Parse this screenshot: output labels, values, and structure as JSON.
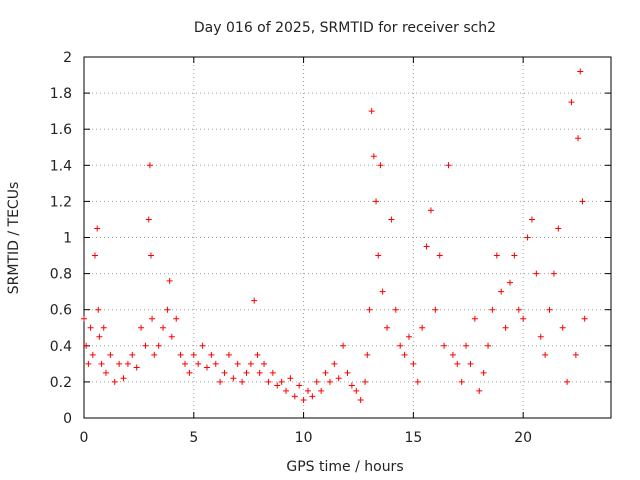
{
  "chart_data": {
    "type": "scatter",
    "title": "Day 016 of 2025, SRMTID for receiver sch2",
    "xlabel": "GPS time / hours",
    "ylabel": "SRMTID / TECUs",
    "xlim": [
      0,
      24
    ],
    "ylim": [
      0,
      2
    ],
    "xticks": [
      0,
      5,
      10,
      15,
      20
    ],
    "xtick_labels": [
      "0",
      "5",
      "10",
      "15",
      "20"
    ],
    "yticks": [
      0,
      0.2,
      0.4,
      0.6,
      0.8,
      1,
      1.2,
      1.4,
      1.6,
      1.8,
      2
    ],
    "ytick_labels": [
      "0",
      "0.2",
      "0.4",
      "0.6",
      "0.8",
      "1",
      "1.2",
      "1.4",
      "1.6",
      "1.8",
      "2"
    ],
    "grid": true,
    "marker": "+",
    "color": "#ff0000",
    "series": [
      {
        "name": "SRMTID",
        "x": [
          0.0,
          0.1,
          0.2,
          0.3,
          0.4,
          0.5,
          0.6,
          0.65,
          0.7,
          0.8,
          0.9,
          1.0,
          1.2,
          1.4,
          1.6,
          1.8,
          2.0,
          2.2,
          2.4,
          2.6,
          2.8,
          2.95,
          3.0,
          3.05,
          3.1,
          3.2,
          3.4,
          3.6,
          3.8,
          3.9,
          4.0,
          4.2,
          4.4,
          4.6,
          4.8,
          5.0,
          5.2,
          5.4,
          5.6,
          5.8,
          6.0,
          6.2,
          6.4,
          6.6,
          6.8,
          7.0,
          7.2,
          7.4,
          7.6,
          7.75,
          7.9,
          8.0,
          8.2,
          8.4,
          8.6,
          8.8,
          9.0,
          9.2,
          9.4,
          9.6,
          9.8,
          10.0,
          10.2,
          10.4,
          10.6,
          10.8,
          11.0,
          11.2,
          11.4,
          11.6,
          11.8,
          12.0,
          12.2,
          12.4,
          12.6,
          12.8,
          12.9,
          13.0,
          13.1,
          13.2,
          13.3,
          13.4,
          13.5,
          13.6,
          13.8,
          14.0,
          14.2,
          14.4,
          14.6,
          14.8,
          15.0,
          15.2,
          15.4,
          15.6,
          15.8,
          16.0,
          16.2,
          16.4,
          16.6,
          16.8,
          17.0,
          17.2,
          17.4,
          17.6,
          17.8,
          18.0,
          18.2,
          18.4,
          18.6,
          18.8,
          19.0,
          19.2,
          19.4,
          19.6,
          19.8,
          20.0,
          20.2,
          20.4,
          20.6,
          20.8,
          21.0,
          21.2,
          21.4,
          21.6,
          21.8,
          22.0,
          22.2,
          22.4,
          22.5,
          22.6,
          22.7,
          22.8
        ],
        "y": [
          0.55,
          0.4,
          0.3,
          0.5,
          0.35,
          0.9,
          1.05,
          0.6,
          0.45,
          0.3,
          0.5,
          0.25,
          0.35,
          0.2,
          0.3,
          0.22,
          0.3,
          0.35,
          0.28,
          0.5,
          0.4,
          1.1,
          1.4,
          0.9,
          0.55,
          0.35,
          0.4,
          0.5,
          0.6,
          0.76,
          0.45,
          0.55,
          0.35,
          0.3,
          0.25,
          0.35,
          0.3,
          0.4,
          0.28,
          0.35,
          0.3,
          0.2,
          0.25,
          0.35,
          0.22,
          0.3,
          0.2,
          0.25,
          0.3,
          0.65,
          0.35,
          0.25,
          0.3,
          0.2,
          0.25,
          0.18,
          0.2,
          0.15,
          0.22,
          0.12,
          0.18,
          0.1,
          0.15,
          0.12,
          0.2,
          0.15,
          0.25,
          0.2,
          0.3,
          0.22,
          0.4,
          0.25,
          0.18,
          0.15,
          0.1,
          0.2,
          0.35,
          0.6,
          1.7,
          1.45,
          1.2,
          0.9,
          1.4,
          0.7,
          0.5,
          1.1,
          0.6,
          0.4,
          0.35,
          0.45,
          0.3,
          0.2,
          0.5,
          0.95,
          1.15,
          0.6,
          0.9,
          0.4,
          1.4,
          0.35,
          0.3,
          0.2,
          0.4,
          0.3,
          0.55,
          0.15,
          0.25,
          0.4,
          0.6,
          0.9,
          0.7,
          0.5,
          0.75,
          0.9,
          0.6,
          0.55,
          1.0,
          1.1,
          0.8,
          0.45,
          0.35,
          0.6,
          0.8,
          1.05,
          0.5,
          0.2,
          1.75,
          0.35,
          1.55,
          1.92,
          1.2,
          0.55
        ]
      }
    ]
  }
}
